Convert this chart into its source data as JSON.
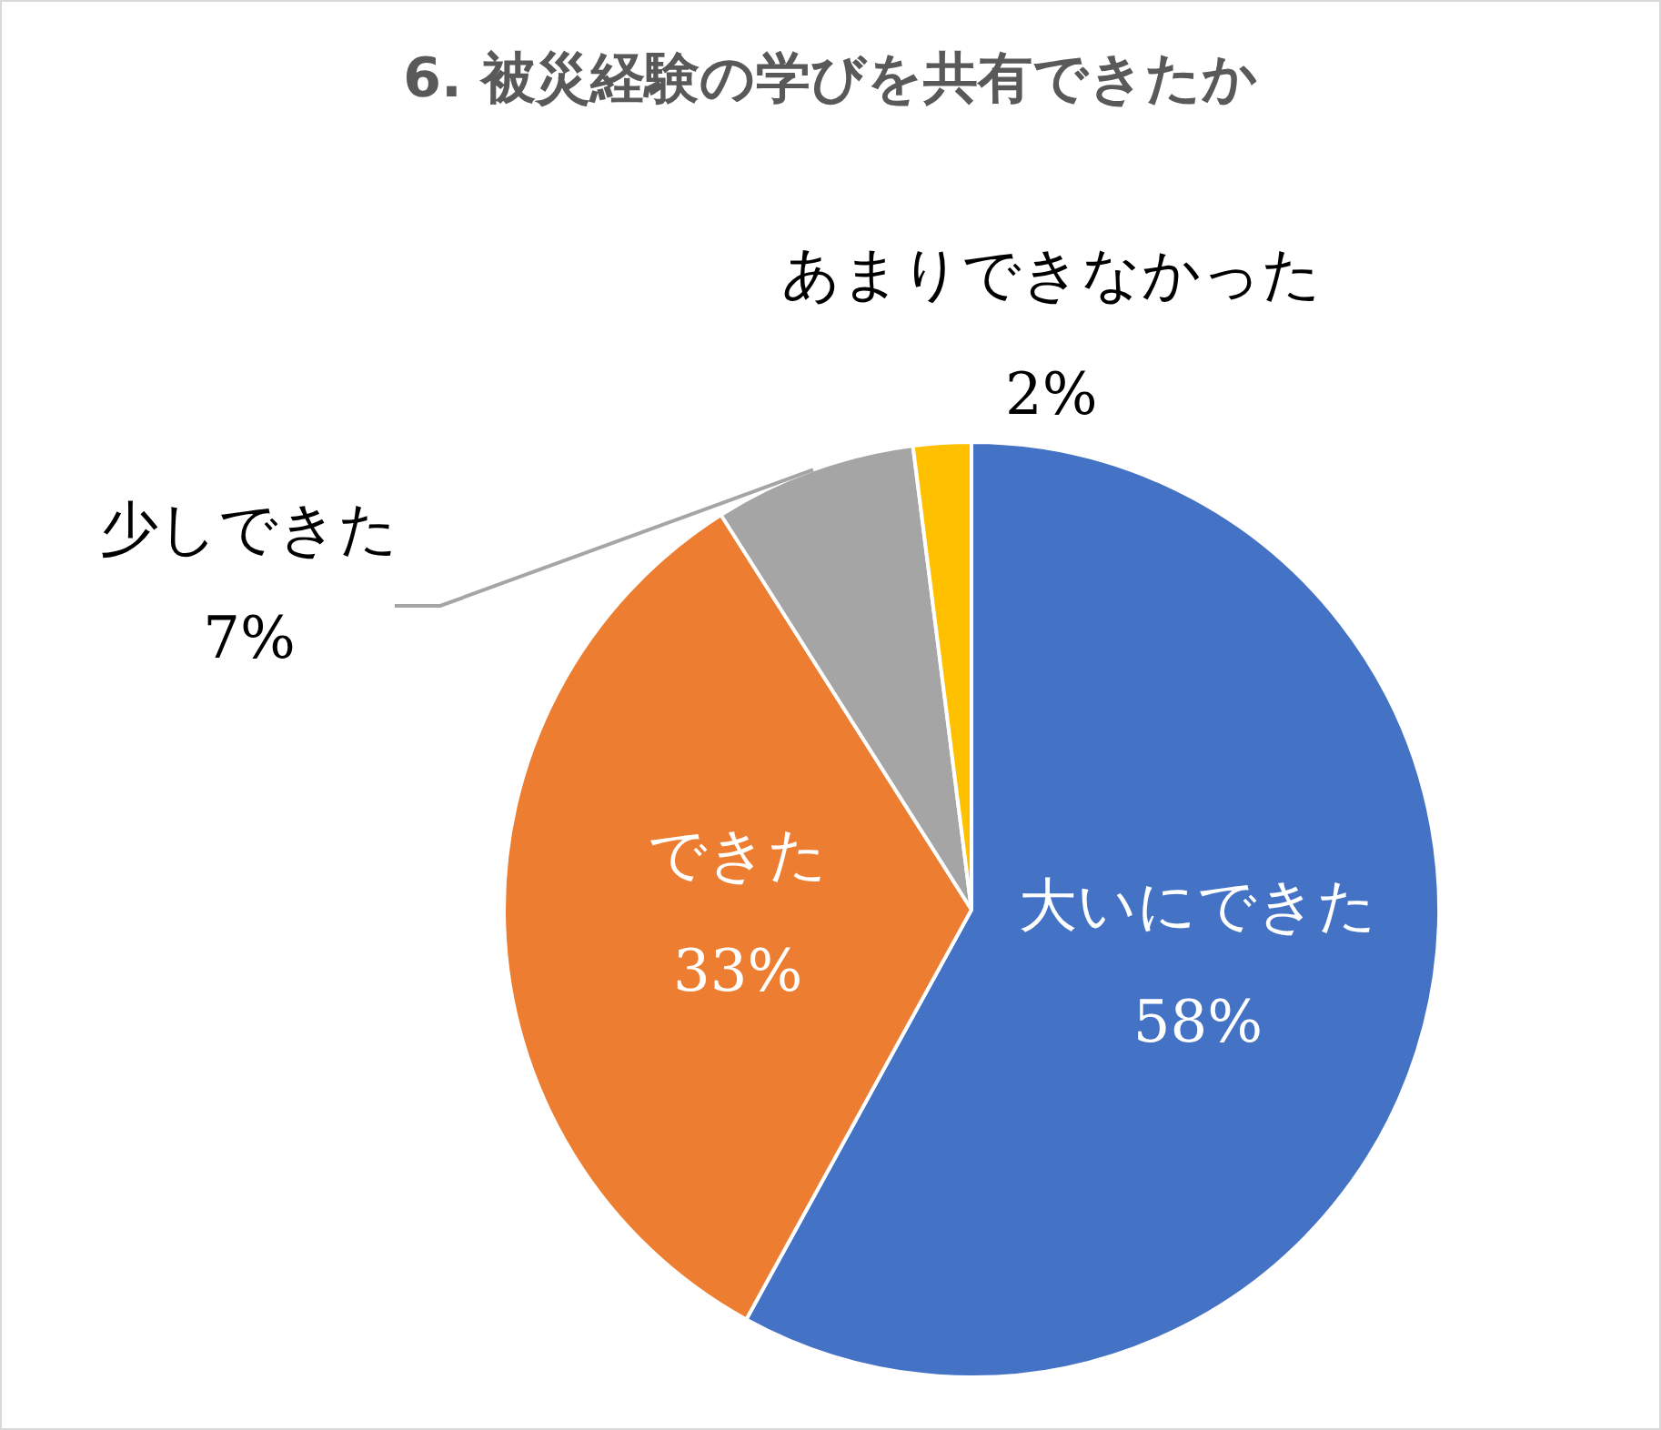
{
  "chart_data": {
    "type": "pie",
    "title": "6. 被災経験の学びを共有できたか",
    "categories": [
      "大いにできた",
      "できた",
      "少しできた",
      "あまりできなかった"
    ],
    "values": [
      58,
      33,
      7,
      2
    ],
    "colors": [
      "#4472c4",
      "#ed7d31",
      "#a5a5a5",
      "#ffc000"
    ],
    "value_labels": [
      "58%",
      "33%",
      "7%",
      "2%"
    ],
    "legend": false
  }
}
